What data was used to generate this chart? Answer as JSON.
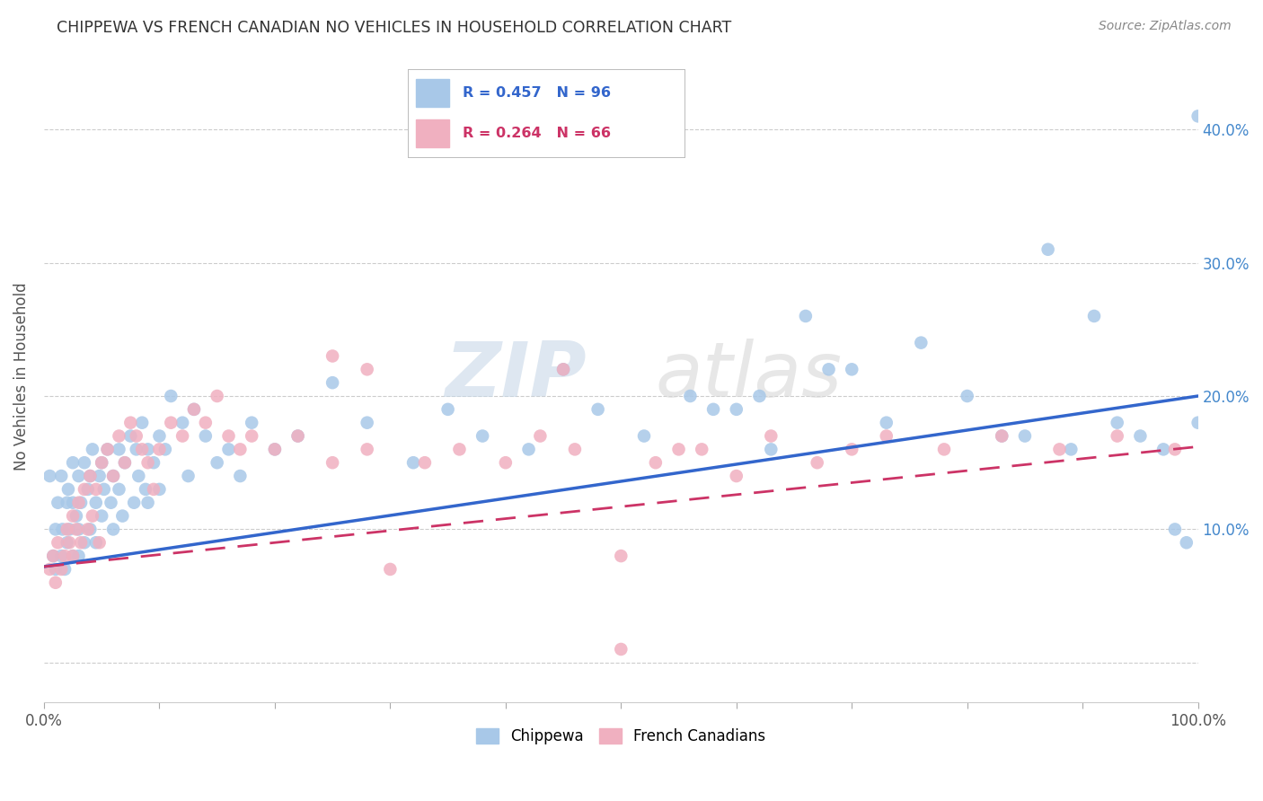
{
  "title": "CHIPPEWA VS FRENCH CANADIAN NO VEHICLES IN HOUSEHOLD CORRELATION CHART",
  "source": "Source: ZipAtlas.com",
  "ylabel": "No Vehicles in Household",
  "watermark_zip": "ZIP",
  "watermark_atlas": "atlas",
  "xlim": [
    0,
    1.0
  ],
  "ylim": [
    -0.03,
    0.46
  ],
  "xticks": [
    0.0,
    0.1,
    0.2,
    0.3,
    0.4,
    0.5,
    0.6,
    0.7,
    0.8,
    0.9,
    1.0
  ],
  "xticklabels": [
    "0.0%",
    "",
    "",
    "",
    "",
    "",
    "",
    "",
    "",
    "",
    "100.0%"
  ],
  "yticks": [
    0.0,
    0.1,
    0.2,
    0.3,
    0.4
  ],
  "yticklabels_right": [
    "",
    "10.0%",
    "20.0%",
    "30.0%",
    "40.0%"
  ],
  "chippewa_color": "#a8c8e8",
  "french_color": "#f0b0c0",
  "chippewa_line_color": "#3366cc",
  "french_line_color": "#cc3366",
  "chippewa_label": "Chippewa",
  "french_label": "French Canadians",
  "chippewa_R": "0.457",
  "chippewa_N": "96",
  "french_R": "0.264",
  "french_N": "66",
  "chippewa_intercept": 0.072,
  "chippewa_slope": 0.128,
  "french_intercept": 0.072,
  "french_slope": 0.09,
  "chippewa_x": [
    0.005,
    0.008,
    0.01,
    0.01,
    0.012,
    0.015,
    0.015,
    0.016,
    0.018,
    0.02,
    0.02,
    0.021,
    0.022,
    0.025,
    0.025,
    0.025,
    0.028,
    0.03,
    0.03,
    0.03,
    0.032,
    0.035,
    0.035,
    0.038,
    0.04,
    0.04,
    0.042,
    0.045,
    0.045,
    0.048,
    0.05,
    0.05,
    0.052,
    0.055,
    0.058,
    0.06,
    0.06,
    0.065,
    0.065,
    0.068,
    0.07,
    0.075,
    0.078,
    0.08,
    0.082,
    0.085,
    0.088,
    0.09,
    0.09,
    0.095,
    0.1,
    0.1,
    0.105,
    0.11,
    0.12,
    0.125,
    0.13,
    0.14,
    0.15,
    0.16,
    0.17,
    0.18,
    0.2,
    0.22,
    0.25,
    0.28,
    0.32,
    0.35,
    0.38,
    0.42,
    0.45,
    0.48,
    0.52,
    0.56,
    0.6,
    0.63,
    0.66,
    0.7,
    0.73,
    0.76,
    0.8,
    0.83,
    0.85,
    0.87,
    0.89,
    0.91,
    0.93,
    0.95,
    0.97,
    0.98,
    0.99,
    1.0,
    1.0,
    0.58,
    0.62,
    0.68
  ],
  "chippewa_y": [
    0.14,
    0.08,
    0.1,
    0.07,
    0.12,
    0.08,
    0.14,
    0.1,
    0.07,
    0.12,
    0.09,
    0.13,
    0.1,
    0.15,
    0.12,
    0.08,
    0.11,
    0.14,
    0.1,
    0.08,
    0.12,
    0.15,
    0.09,
    0.13,
    0.14,
    0.1,
    0.16,
    0.12,
    0.09,
    0.14,
    0.15,
    0.11,
    0.13,
    0.16,
    0.12,
    0.14,
    0.1,
    0.16,
    0.13,
    0.11,
    0.15,
    0.17,
    0.12,
    0.16,
    0.14,
    0.18,
    0.13,
    0.16,
    0.12,
    0.15,
    0.17,
    0.13,
    0.16,
    0.2,
    0.18,
    0.14,
    0.19,
    0.17,
    0.15,
    0.16,
    0.14,
    0.18,
    0.16,
    0.17,
    0.21,
    0.18,
    0.15,
    0.19,
    0.17,
    0.16,
    0.22,
    0.19,
    0.17,
    0.2,
    0.19,
    0.16,
    0.26,
    0.22,
    0.18,
    0.24,
    0.2,
    0.17,
    0.17,
    0.31,
    0.16,
    0.26,
    0.18,
    0.17,
    0.16,
    0.1,
    0.09,
    0.18,
    0.41,
    0.19,
    0.2,
    0.22
  ],
  "french_x": [
    0.005,
    0.008,
    0.01,
    0.012,
    0.015,
    0.018,
    0.02,
    0.022,
    0.025,
    0.025,
    0.028,
    0.03,
    0.032,
    0.035,
    0.038,
    0.04,
    0.042,
    0.045,
    0.048,
    0.05,
    0.055,
    0.06,
    0.065,
    0.07,
    0.075,
    0.08,
    0.085,
    0.09,
    0.095,
    0.1,
    0.11,
    0.12,
    0.13,
    0.14,
    0.15,
    0.16,
    0.17,
    0.18,
    0.2,
    0.22,
    0.25,
    0.28,
    0.3,
    0.33,
    0.36,
    0.4,
    0.43,
    0.46,
    0.5,
    0.53,
    0.57,
    0.6,
    0.63,
    0.67,
    0.7,
    0.73,
    0.78,
    0.83,
    0.88,
    0.93,
    0.98,
    0.25,
    0.28,
    0.45,
    0.5,
    0.55
  ],
  "french_y": [
    0.07,
    0.08,
    0.06,
    0.09,
    0.07,
    0.08,
    0.1,
    0.09,
    0.11,
    0.08,
    0.1,
    0.12,
    0.09,
    0.13,
    0.1,
    0.14,
    0.11,
    0.13,
    0.09,
    0.15,
    0.16,
    0.14,
    0.17,
    0.15,
    0.18,
    0.17,
    0.16,
    0.15,
    0.13,
    0.16,
    0.18,
    0.17,
    0.19,
    0.18,
    0.2,
    0.17,
    0.16,
    0.17,
    0.16,
    0.17,
    0.15,
    0.16,
    0.07,
    0.15,
    0.16,
    0.15,
    0.17,
    0.16,
    0.08,
    0.15,
    0.16,
    0.14,
    0.17,
    0.15,
    0.16,
    0.17,
    0.16,
    0.17,
    0.16,
    0.17,
    0.16,
    0.23,
    0.22,
    0.22,
    0.01,
    0.16
  ]
}
